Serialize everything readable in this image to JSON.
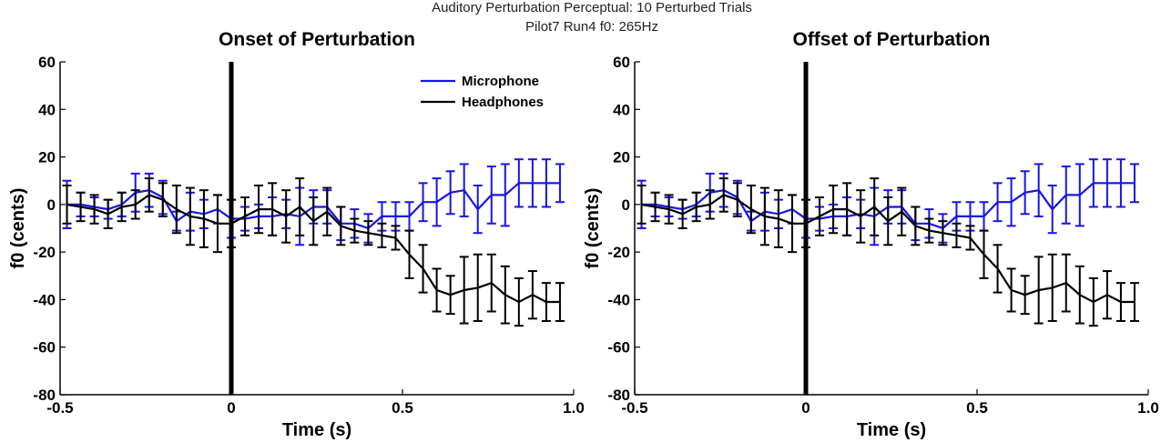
{
  "figure": {
    "suptitle_line1": "Auditory Perturbation Perceptual: 10 Perturbed Trials",
    "suptitle_line2": "Pilot7 Run4   f0: 265Hz"
  },
  "colors": {
    "microphone": "#1515e8",
    "headphones": "#000000",
    "marker": "#000000"
  },
  "chart_data": [
    {
      "type": "line",
      "title": "Onset of Perturbation",
      "xlabel": "Time (s)",
      "ylabel": "f0 (cents)",
      "xlim": [
        -0.5,
        1.0
      ],
      "ylim": [
        -80,
        60
      ],
      "xticks": [
        "-0.5",
        "0",
        "0.5",
        "1.0"
      ],
      "yticks": [
        "-80",
        "-60",
        "-40",
        "-20",
        "0",
        "20",
        "40",
        "60"
      ],
      "vline_x": 0,
      "legend": "top-center",
      "x": [
        -0.48,
        -0.44,
        -0.4,
        -0.36,
        -0.32,
        -0.28,
        -0.24,
        -0.2,
        -0.16,
        -0.12,
        -0.08,
        -0.04,
        0.0,
        0.04,
        0.08,
        0.12,
        0.16,
        0.2,
        0.24,
        0.28,
        0.32,
        0.36,
        0.4,
        0.44,
        0.48,
        0.52,
        0.56,
        0.6,
        0.64,
        0.68,
        0.72,
        0.76,
        0.8,
        0.84,
        0.88,
        0.92,
        0.96
      ],
      "series": [
        {
          "name": "Microphone",
          "values": [
            0,
            0,
            -1,
            -2,
            0,
            5,
            6,
            3,
            -7,
            -3,
            -4,
            -2,
            -6,
            -6,
            -5,
            -5,
            -4,
            -5,
            -1,
            -1,
            -8,
            -8,
            -10,
            -5,
            -5,
            -5,
            1,
            1,
            5,
            6,
            -2,
            4,
            4,
            9,
            9,
            9,
            9
          ],
          "err": [
            10,
            5,
            4,
            4,
            5,
            8,
            7,
            7,
            4,
            8,
            6,
            6,
            8,
            5,
            5,
            8,
            6,
            12,
            7,
            7,
            7,
            6,
            6,
            6,
            6,
            6,
            8,
            10,
            9,
            11,
            10,
            12,
            13,
            10,
            10,
            10,
            8
          ]
        },
        {
          "name": "Headphones",
          "values": [
            0,
            -1,
            -2,
            -4,
            -1,
            0,
            4,
            2,
            -2,
            -5,
            -6,
            -8,
            -8,
            -5,
            -2,
            -2,
            -5,
            -1,
            -7,
            -3,
            -9,
            -11,
            -12,
            -13,
            -14,
            -21,
            -27,
            -36,
            -38,
            -36,
            -35,
            -33,
            -38,
            -41,
            -38,
            -41,
            -41
          ],
          "err": [
            8,
            6,
            6,
            6,
            6,
            6,
            7,
            7,
            10,
            12,
            12,
            12,
            10,
            8,
            10,
            11,
            11,
            12,
            10,
            10,
            8,
            5,
            5,
            5,
            5,
            10,
            10,
            9,
            8,
            14,
            14,
            12,
            12,
            10,
            10,
            8,
            8
          ]
        }
      ]
    },
    {
      "type": "line",
      "title": "Offset of Perturbation",
      "xlabel": "Time (s)",
      "ylabel": "f0 (cents)",
      "xlim": [
        -0.5,
        1.0
      ],
      "ylim": [
        -80,
        60
      ],
      "xticks": [
        "-0.5",
        "0",
        "0.5",
        "1.0"
      ],
      "yticks": [
        "-80",
        "-60",
        "-40",
        "-20",
        "0",
        "20",
        "40",
        "60"
      ],
      "vline_x": 0,
      "x": [
        -0.48,
        -0.44,
        -0.4,
        -0.36,
        -0.32,
        -0.28,
        -0.24,
        -0.2,
        -0.16,
        -0.12,
        -0.08,
        -0.04,
        0.0,
        0.04,
        0.08,
        0.12,
        0.16,
        0.2,
        0.24,
        0.28,
        0.32,
        0.36,
        0.4,
        0.44,
        0.48,
        0.52,
        0.56,
        0.6,
        0.64,
        0.68,
        0.72,
        0.76,
        0.8,
        0.84,
        0.88,
        0.92,
        0.96
      ],
      "series": [
        {
          "name": "Microphone",
          "values": [
            0,
            0,
            -1,
            -2,
            0,
            5,
            6,
            3,
            -7,
            -3,
            -4,
            -2,
            -6,
            -6,
            -5,
            -5,
            -4,
            -5,
            -1,
            -1,
            -8,
            -8,
            -10,
            -5,
            -5,
            -5,
            1,
            1,
            5,
            6,
            -2,
            4,
            4,
            9,
            9,
            9,
            9
          ],
          "err": [
            10,
            5,
            4,
            4,
            5,
            8,
            7,
            7,
            4,
            8,
            6,
            6,
            8,
            5,
            5,
            8,
            6,
            12,
            7,
            7,
            7,
            6,
            6,
            6,
            6,
            6,
            8,
            10,
            9,
            11,
            10,
            12,
            13,
            10,
            10,
            10,
            8
          ]
        },
        {
          "name": "Headphones",
          "values": [
            0,
            -1,
            -2,
            -4,
            -1,
            0,
            4,
            2,
            -2,
            -5,
            -6,
            -8,
            -8,
            -5,
            -2,
            -2,
            -5,
            -1,
            -7,
            -3,
            -9,
            -11,
            -12,
            -13,
            -14,
            -21,
            -27,
            -36,
            -38,
            -36,
            -35,
            -33,
            -38,
            -41,
            -38,
            -41,
            -41
          ],
          "err": [
            8,
            6,
            6,
            6,
            6,
            6,
            7,
            7,
            10,
            12,
            12,
            12,
            10,
            8,
            10,
            11,
            11,
            12,
            10,
            10,
            8,
            5,
            5,
            5,
            5,
            10,
            10,
            9,
            8,
            14,
            14,
            12,
            12,
            10,
            10,
            8,
            8
          ]
        }
      ]
    }
  ]
}
